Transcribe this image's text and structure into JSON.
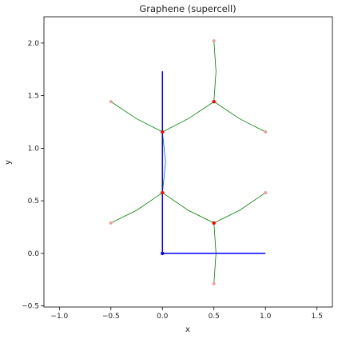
{
  "chart_data": {
    "type": "line",
    "title": "Graphene (supercell)",
    "xlabel": "x",
    "ylabel": "y",
    "xlim": [
      -1.15,
      1.65
    ],
    "ylim": [
      -0.51,
      2.25
    ],
    "x_ticks": [
      -1.0,
      -0.5,
      0.0,
      0.5,
      1.0,
      1.5
    ],
    "x_tick_labels": [
      "−1.0",
      "−0.5",
      "0.0",
      "0.5",
      "1.0",
      "1.5"
    ],
    "y_ticks": [
      -0.5,
      0.0,
      0.5,
      1.0,
      1.5,
      2.0
    ],
    "y_tick_labels": [
      "−0.5",
      "0.0",
      "0.5",
      "1.0",
      "1.5",
      "2.0"
    ],
    "grid": false,
    "lattice_vectors": {
      "color": "#0000ff",
      "origin": [
        0.0,
        0.0
      ],
      "vectors": [
        [
          1.0,
          0.0
        ],
        [
          0.0,
          1.732
        ]
      ]
    },
    "bonds": {
      "color": "#008000",
      "segments": [
        [
          [
            0.0,
            0.577
          ],
          [
            0.25,
            0.41
          ],
          [
            0.5,
            0.289
          ]
        ],
        [
          [
            0.0,
            0.577
          ],
          [
            -0.25,
            0.41
          ],
          [
            -0.5,
            0.289
          ]
        ],
        [
          [
            0.0,
            0.577
          ],
          [
            0.03,
            0.866
          ],
          [
            0.0,
            1.155
          ]
        ],
        [
          [
            0.0,
            1.155
          ],
          [
            0.25,
            1.28
          ],
          [
            0.5,
            1.443
          ]
        ],
        [
          [
            0.0,
            1.155
          ],
          [
            -0.25,
            1.28
          ],
          [
            -0.5,
            1.443
          ]
        ],
        [
          [
            0.5,
            1.443
          ],
          [
            0.75,
            1.28
          ],
          [
            1.0,
            1.155
          ]
        ],
        [
          [
            0.5,
            1.443
          ],
          [
            0.52,
            1.73
          ],
          [
            0.5,
            2.021
          ]
        ],
        [
          [
            0.5,
            0.289
          ],
          [
            0.75,
            0.41
          ],
          [
            1.0,
            0.577
          ]
        ],
        [
          [
            0.5,
            0.289
          ],
          [
            0.52,
            0.0
          ],
          [
            0.5,
            -0.289
          ]
        ]
      ]
    },
    "atoms": {
      "color": "#ff0000",
      "points": [
        [
          0.0,
          0.577
        ],
        [
          0.0,
          1.155
        ],
        [
          0.5,
          0.289
        ],
        [
          0.5,
          1.443
        ]
      ]
    },
    "image_atoms": {
      "color": "#e8a0a0",
      "points": [
        [
          -0.5,
          0.289
        ],
        [
          -0.5,
          1.443
        ],
        [
          1.0,
          0.577
        ],
        [
          1.0,
          1.155
        ],
        [
          0.5,
          -0.289
        ],
        [
          0.5,
          2.021
        ]
      ]
    },
    "origin_point": {
      "color": "#0000ff",
      "point": [
        0.0,
        0.0
      ]
    }
  }
}
